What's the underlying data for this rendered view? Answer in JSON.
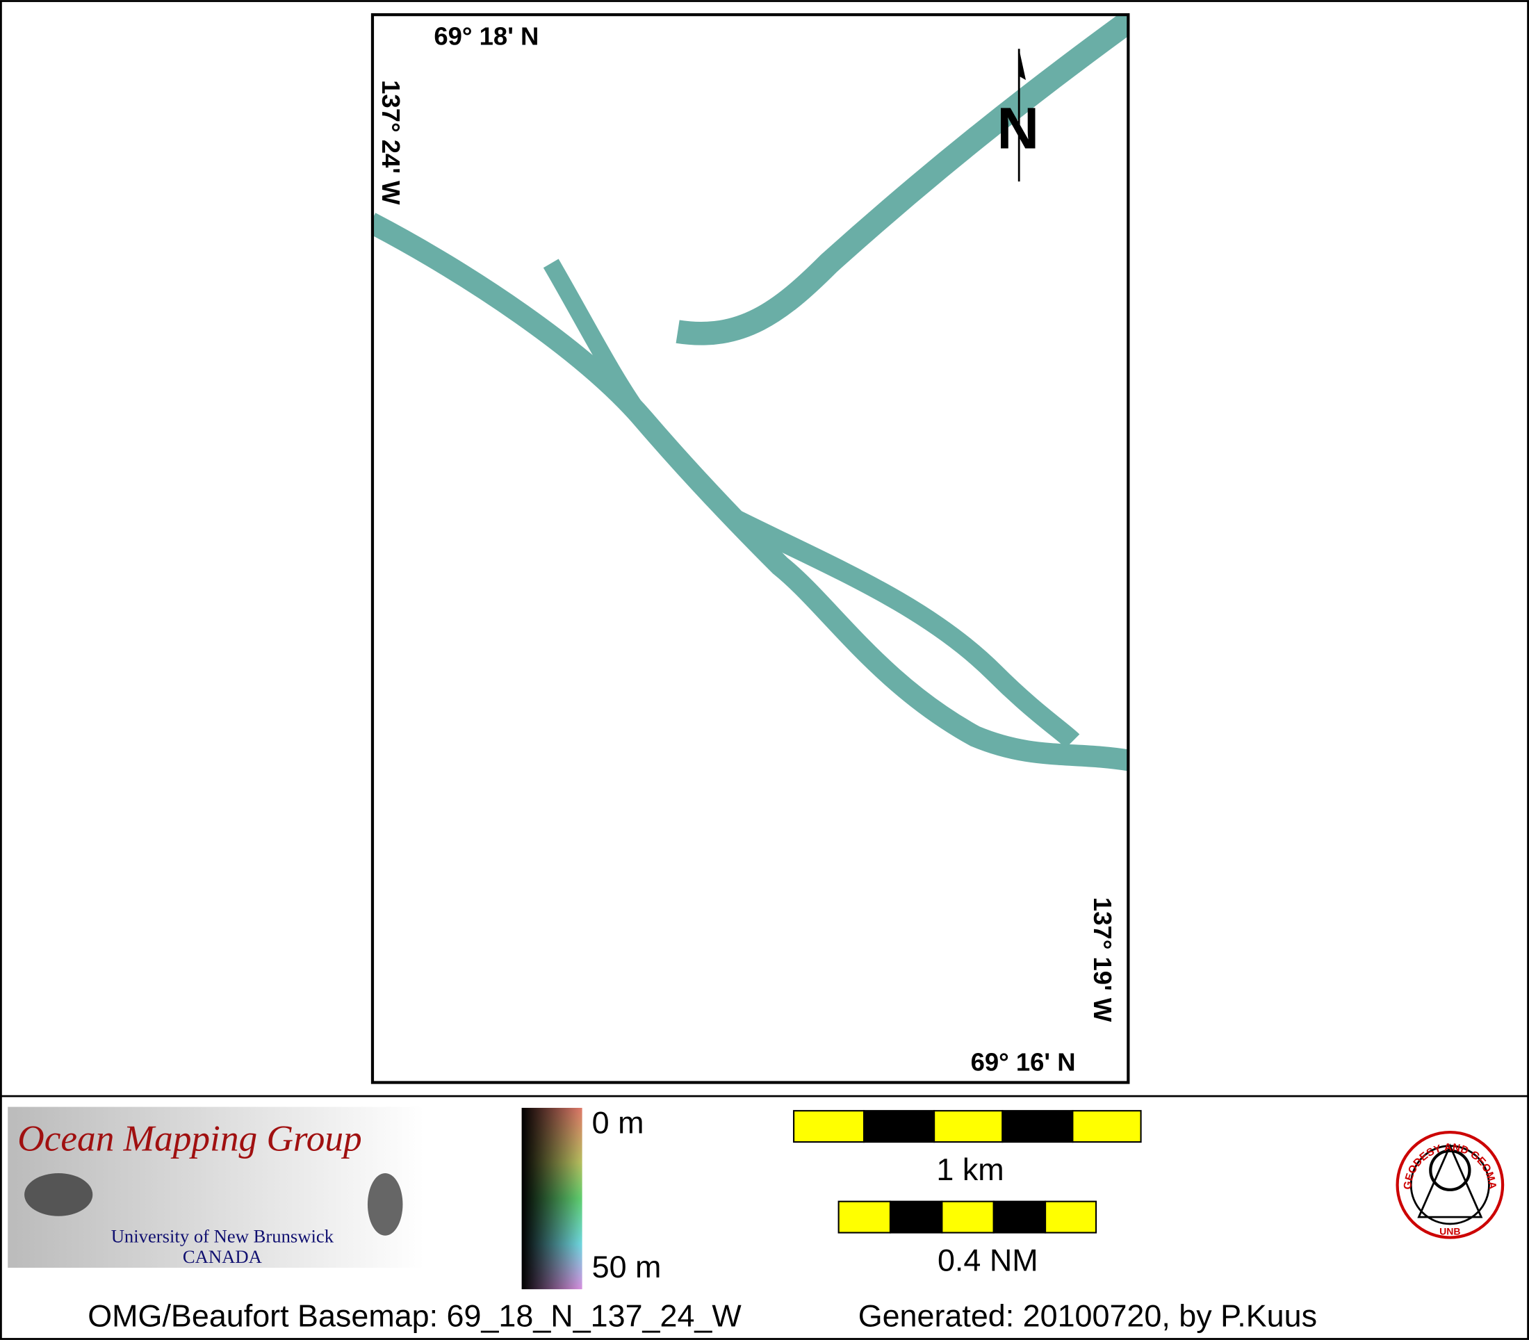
{
  "map": {
    "labels": {
      "top_lat": "69° 18' N",
      "left_lon": "137° 24' W",
      "bottom_lat": "69° 16' N",
      "right_lon": "137° 19' W",
      "north": "N"
    },
    "legend": {
      "group": {
        "title": "Ocean Mapping Group",
        "university": "University of New Brunswick",
        "country": "CANADA"
      },
      "colorbar": {
        "top": "0 m",
        "bottom": "50 m"
      },
      "scalebars": {
        "metric": "1 km",
        "nautical": "0.4 NM"
      },
      "logo": {
        "ring": "GEODESY AND GEOMATICS ENGINEERING",
        "bottom": "UNB"
      }
    },
    "footer": {
      "basemap": "OMG/Beaufort Basemap: 69_18_N_137_24_W",
      "generated": "Generated: 20100720, by P.Kuus"
    }
  }
}
